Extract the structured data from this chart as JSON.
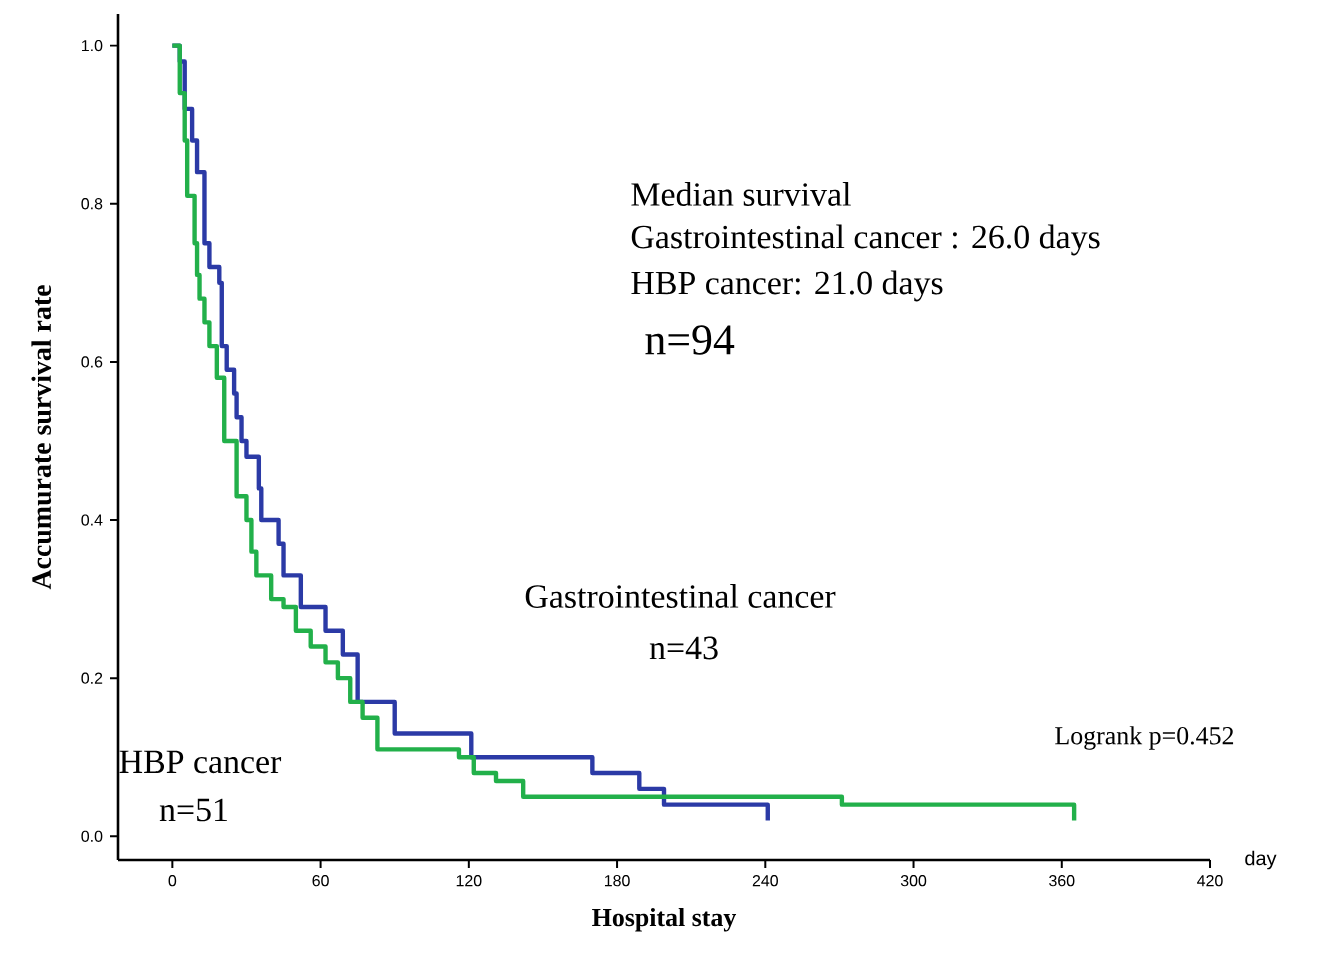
{
  "chart_data": {
    "type": "step",
    "xlabel": "Hospital stay",
    "ylabel": "Accumurate survival rate",
    "xlim": [
      -22,
      420
    ],
    "ylim": [
      -0.03,
      1.04
    ],
    "xticks": [
      0,
      60,
      120,
      180,
      240,
      300,
      360,
      420
    ],
    "yticks": [
      {
        "value": 0,
        "label": "0.0"
      },
      {
        "value": 0.2,
        "label": "0.2"
      },
      {
        "value": 0.4,
        "label": "0.4"
      },
      {
        "value": 0.6,
        "label": "0.6"
      },
      {
        "value": 0.8,
        "label": "0.8"
      },
      {
        "value": 1,
        "label": "1.0"
      }
    ],
    "annotations": [
      "Median survival",
      "Gastrointestinal cancer : 26.0 days",
      "HBP cancer: 21.0 days",
      "n=94",
      "Gastrointestinal cancer",
      "n=43",
      "n=51",
      "Logrank p=0.452",
      "day"
    ],
    "series": [
      {
        "color": "#2b3aa6",
        "x": [
          0,
          3,
          5,
          8,
          10,
          13,
          15,
          19,
          20,
          22,
          25,
          26,
          28,
          30,
          35,
          36,
          43,
          45,
          52,
          62,
          69,
          75,
          90,
          121,
          170,
          189,
          199,
          241
        ],
        "values": [
          1.0,
          0.98,
          0.92,
          0.88,
          0.84,
          0.75,
          0.72,
          0.7,
          0.62,
          0.59,
          0.56,
          0.53,
          0.5,
          0.48,
          0.44,
          0.4,
          0.37,
          0.33,
          0.29,
          0.26,
          0.23,
          0.17,
          0.13,
          0.1,
          0.08,
          0.06,
          0.04,
          0.02
        ]
      },
      {
        "name": "HBP cancer",
        "color": "#22b04a",
        "x": [
          0,
          3,
          5,
          6,
          9,
          10,
          11,
          13,
          15,
          18,
          21,
          26,
          30,
          32,
          34,
          40,
          45,
          50,
          56,
          62,
          67,
          72,
          77,
          83,
          116,
          122,
          131,
          142,
          271,
          365
        ],
        "values": [
          1.0,
          0.94,
          0.88,
          0.81,
          0.75,
          0.71,
          0.68,
          0.65,
          0.62,
          0.58,
          0.5,
          0.43,
          0.4,
          0.36,
          0.33,
          0.3,
          0.29,
          0.26,
          0.24,
          0.22,
          0.2,
          0.17,
          0.15,
          0.11,
          0.1,
          0.08,
          0.07,
          0.05,
          0.04,
          0.02
        ]
      }
    ]
  }
}
